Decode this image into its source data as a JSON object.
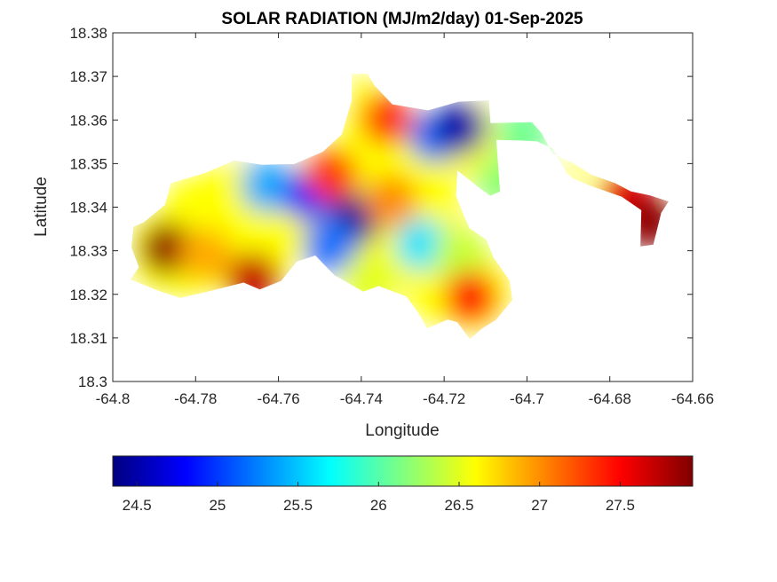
{
  "chart_data": {
    "type": "heatmap",
    "title": "SOLAR RADIATION (MJ/m2/day) 01-Sep-2025",
    "xlabel": "Longitude",
    "ylabel": "Latitude",
    "xlim": [
      -64.8,
      -64.66
    ],
    "ylim": [
      18.3,
      18.38
    ],
    "x_ticks": [
      "-64.8",
      "-64.78",
      "-64.76",
      "-64.74",
      "-64.72",
      "-64.7",
      "-64.68",
      "-64.66"
    ],
    "x_tick_values": [
      -64.8,
      -64.78,
      -64.76,
      -64.74,
      -64.72,
      -64.7,
      -64.68,
      -64.66
    ],
    "y_ticks": [
      "18.3",
      "18.31",
      "18.32",
      "18.33",
      "18.34",
      "18.35",
      "18.36",
      "18.37",
      "18.38"
    ],
    "y_tick_values": [
      18.3,
      18.31,
      18.32,
      18.33,
      18.34,
      18.35,
      18.36,
      18.37,
      18.38
    ],
    "colorbar": {
      "colormap": "jet",
      "range": [
        24.35,
        27.95
      ],
      "ticks": [
        "24.5",
        "25",
        "25.5",
        "26",
        "26.5",
        "27",
        "27.5"
      ],
      "tick_values": [
        24.5,
        25,
        25.5,
        26,
        26.5,
        27,
        27.5
      ],
      "placement": "bottom"
    },
    "grid": false,
    "outline": [
      [
        -64.7926,
        18.3365
      ],
      [
        -64.7874,
        18.3405
      ],
      [
        -64.786,
        18.3455
      ],
      [
        -64.7776,
        18.3479
      ],
      [
        -64.7706,
        18.3507
      ],
      [
        -64.764,
        18.3497
      ],
      [
        -64.7562,
        18.3499
      ],
      [
        -64.7493,
        18.3527
      ],
      [
        -64.7447,
        18.3567
      ],
      [
        -64.7423,
        18.3645
      ],
      [
        -64.7423,
        18.3706
      ],
      [
        -64.7385,
        18.3706
      ],
      [
        -64.7368,
        18.3679
      ],
      [
        -64.7325,
        18.3636
      ],
      [
        -64.7239,
        18.3622
      ],
      [
        -64.7165,
        18.3642
      ],
      [
        -64.7092,
        18.3645
      ],
      [
        -64.7088,
        18.3593
      ],
      [
        -64.6988,
        18.3595
      ],
      [
        -64.6965,
        18.357
      ],
      [
        -64.6938,
        18.3523
      ],
      [
        -64.6885,
        18.3499
      ],
      [
        -64.6845,
        18.3475
      ],
      [
        -64.6787,
        18.3455
      ],
      [
        -64.6749,
        18.3436
      ],
      [
        -64.6703,
        18.3427
      ],
      [
        -64.6658,
        18.3413
      ],
      [
        -64.6676,
        18.3387
      ],
      [
        -64.6695,
        18.3314
      ],
      [
        -64.6726,
        18.331
      ],
      [
        -64.6724,
        18.3393
      ],
      [
        -64.6771,
        18.3424
      ],
      [
        -64.6841,
        18.3447
      ],
      [
        -64.6885,
        18.3464
      ],
      [
        -64.6903,
        18.3476
      ],
      [
        -64.6938,
        18.3535
      ],
      [
        -64.6977,
        18.3551
      ],
      [
        -64.7021,
        18.3553
      ],
      [
        -64.7074,
        18.3554
      ],
      [
        -64.7065,
        18.3436
      ],
      [
        -64.7088,
        18.3426
      ],
      [
        -64.7116,
        18.3445
      ],
      [
        -64.7168,
        18.3484
      ],
      [
        -64.7171,
        18.3426
      ],
      [
        -64.7156,
        18.3389
      ],
      [
        -64.7139,
        18.3352
      ],
      [
        -64.7098,
        18.3325
      ],
      [
        -64.7081,
        18.3285
      ],
      [
        -64.7042,
        18.3232
      ],
      [
        -64.7035,
        18.3187
      ],
      [
        -64.7075,
        18.3141
      ],
      [
        -64.7108,
        18.3122
      ],
      [
        -64.7138,
        18.3097
      ],
      [
        -64.7168,
        18.3136
      ],
      [
        -64.7191,
        18.3142
      ],
      [
        -64.7241,
        18.3122
      ],
      [
        -64.7262,
        18.3157
      ],
      [
        -64.7291,
        18.3195
      ],
      [
        -64.7358,
        18.3219
      ],
      [
        -64.7395,
        18.3206
      ],
      [
        -64.7465,
        18.3244
      ],
      [
        -64.7511,
        18.3289
      ],
      [
        -64.7556,
        18.3275
      ],
      [
        -64.7593,
        18.3231
      ],
      [
        -64.7645,
        18.3211
      ],
      [
        -64.7684,
        18.3227
      ],
      [
        -64.7738,
        18.3214
      ],
      [
        -64.7776,
        18.3205
      ],
      [
        -64.7837,
        18.3192
      ],
      [
        -64.7887,
        18.3207
      ],
      [
        -64.7926,
        18.3222
      ],
      [
        -64.7958,
        18.3234
      ],
      [
        -64.7937,
        18.3262
      ],
      [
        -64.7955,
        18.3308
      ],
      [
        -64.795,
        18.3355
      ],
      [
        -64.7926,
        18.3365
      ]
    ],
    "hotspots": [
      {
        "x": -64.7868,
        "y": 18.3305,
        "value": 27.9
      },
      {
        "x": -64.7774,
        "y": 18.3409,
        "value": 26.6
      },
      {
        "x": -64.7776,
        "y": 18.3291,
        "value": 26.9
      },
      {
        "x": -64.7626,
        "y": 18.3449,
        "value": 25.4
      },
      {
        "x": -64.7528,
        "y": 18.3428,
        "value": 24.9
      },
      {
        "x": -64.7416,
        "y": 18.3372,
        "value": 24.4
      },
      {
        "x": -64.7476,
        "y": 18.3312,
        "value": 25.2
      },
      {
        "x": -64.7472,
        "y": 18.3473,
        "value": 27.3
      },
      {
        "x": -64.7328,
        "y": 18.3414,
        "value": 27.0
      },
      {
        "x": -64.7337,
        "y": 18.3602,
        "value": 27.3
      },
      {
        "x": -64.7221,
        "y": 18.3563,
        "value": 25.2
      },
      {
        "x": -64.7163,
        "y": 18.3582,
        "value": 24.5
      },
      {
        "x": -64.7254,
        "y": 18.3314,
        "value": 25.6
      },
      {
        "x": -64.7162,
        "y": 18.3289,
        "value": 26.4
      },
      {
        "x": -64.7136,
        "y": 18.3193,
        "value": 27.5
      },
      {
        "x": -64.7382,
        "y": 18.3233,
        "value": 26.5
      },
      {
        "x": -64.7661,
        "y": 18.3236,
        "value": 27.7
      },
      {
        "x": -64.7009,
        "y": 18.3571,
        "value": 26.1
      },
      {
        "x": -64.6757,
        "y": 18.3421,
        "value": 27.6
      },
      {
        "x": -64.6704,
        "y": 18.3365,
        "value": 27.9
      },
      {
        "x": -64.7059,
        "y": 18.3459,
        "value": 26.2
      }
    ]
  }
}
